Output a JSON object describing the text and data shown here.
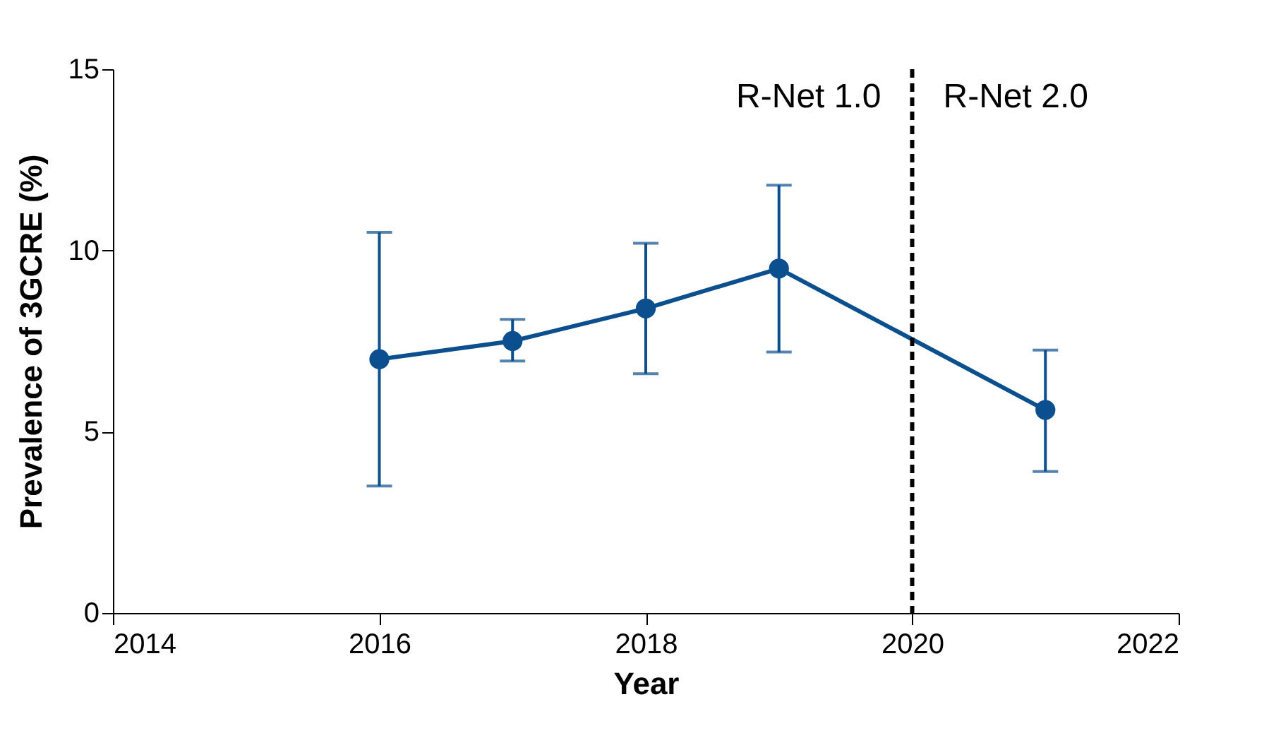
{
  "chart_data": {
    "type": "line",
    "xlabel": "Year",
    "ylabel": "Prevalence of 3GCRE (%)",
    "x": [
      2016,
      2017,
      2018,
      2019,
      2021
    ],
    "series": [
      {
        "color": "#0b4f8f",
        "values": [
          7.0,
          7.5,
          8.4,
          9.5,
          5.6
        ],
        "errors": [
          [
            3.5,
            10.5
          ],
          [
            6.95,
            8.1
          ],
          [
            6.6,
            10.2
          ],
          [
            7.2,
            11.8
          ],
          [
            3.9,
            7.25
          ]
        ]
      }
    ],
    "marker": "circle",
    "line_style": "solid",
    "xlim": [
      2014,
      2022
    ],
    "xticks": [
      2014,
      2016,
      2018,
      2020,
      2022
    ],
    "ylim": [
      0,
      15
    ],
    "yticks": [
      0,
      5,
      10,
      15
    ],
    "grid": false,
    "ref_lines": [
      {
        "axis": "x",
        "value": 2020,
        "color": "#000000",
        "line_style": "dashed"
      }
    ],
    "annotations": [
      "R-Net 1.0",
      "R-Net 2.0"
    ]
  }
}
